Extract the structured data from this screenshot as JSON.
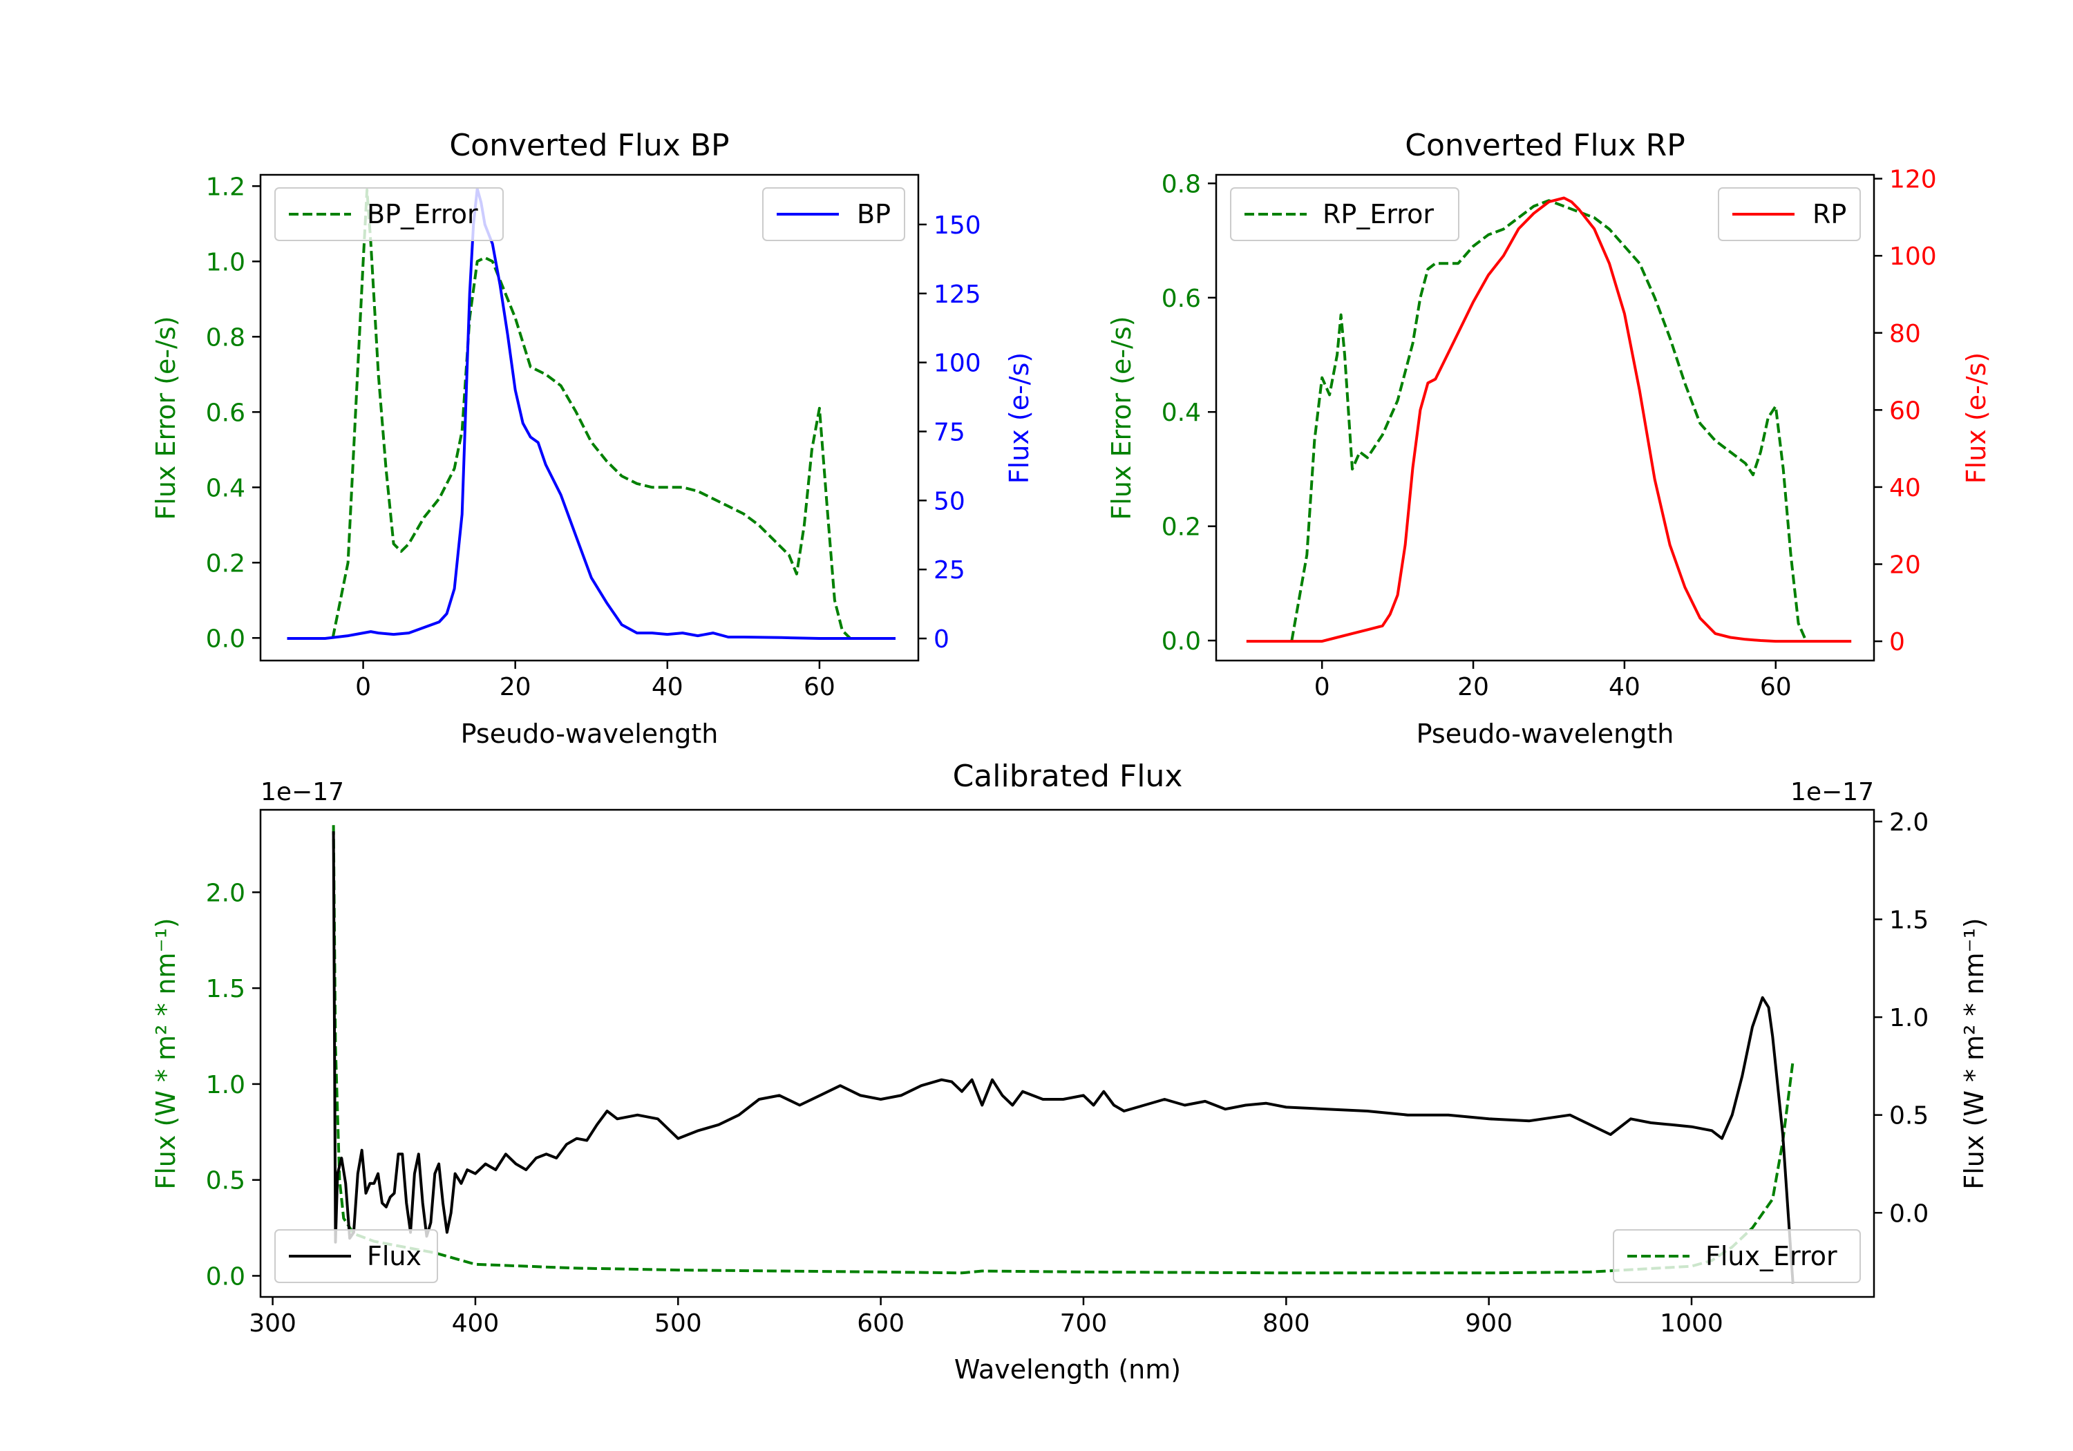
{
  "colors": {
    "green": "#008000",
    "blue": "#0000ff",
    "red": "#ff0000",
    "black": "#000000"
  },
  "chart_data": [
    {
      "id": "bp",
      "type": "line",
      "title": "Converted Flux BP",
      "xlabel": "Pseudo-wavelength",
      "ylabel_left": "Flux Error (e-/s)",
      "ylabel_right": "Flux (e-/s)",
      "xlim": [
        -13.5,
        73
      ],
      "ylim_left": [
        -0.06,
        1.23
      ],
      "ylim_right": [
        -8,
        168
      ],
      "xticks": [
        0,
        20,
        40,
        60
      ],
      "xtick_labels": [
        "0",
        "20",
        "40",
        "60"
      ],
      "yticks_left": [
        0.0,
        0.2,
        0.4,
        0.6,
        0.8,
        1.0,
        1.2
      ],
      "ytick_labels_left": [
        "0.0",
        "0.2",
        "0.4",
        "0.6",
        "0.8",
        "1.0",
        "1.2"
      ],
      "yticks_right": [
        0,
        25,
        50,
        75,
        100,
        125,
        150
      ],
      "ytick_labels_right": [
        "0",
        "25",
        "50",
        "75",
        "100",
        "125",
        "150"
      ],
      "series": [
        {
          "name": "BP_Error",
          "axis": "left",
          "style": "dashed",
          "color": "#008000",
          "x": [
            -4,
            -2,
            -1,
            0,
            0.5,
            1,
            2,
            3,
            4,
            5,
            6,
            8,
            10,
            12,
            13,
            14,
            15,
            16,
            17,
            18,
            20,
            22,
            24,
            26,
            28,
            30,
            32,
            34,
            36,
            38,
            40,
            42,
            44,
            46,
            48,
            50,
            52,
            54,
            56,
            57,
            58,
            59,
            60,
            61,
            62,
            63,
            64
          ],
          "y": [
            0.0,
            0.2,
            0.6,
            1.0,
            1.19,
            1.05,
            0.7,
            0.45,
            0.25,
            0.23,
            0.25,
            0.32,
            0.37,
            0.45,
            0.55,
            0.85,
            1.0,
            1.01,
            1.0,
            0.95,
            0.85,
            0.72,
            0.7,
            0.67,
            0.6,
            0.52,
            0.47,
            0.43,
            0.41,
            0.4,
            0.4,
            0.4,
            0.39,
            0.37,
            0.35,
            0.33,
            0.3,
            0.26,
            0.22,
            0.17,
            0.3,
            0.5,
            0.61,
            0.35,
            0.1,
            0.02,
            0.0
          ]
        },
        {
          "name": "BP",
          "axis": "right",
          "style": "solid",
          "color": "#0000ff",
          "x": [
            -10,
            -5,
            -2,
            0,
            1,
            2,
            4,
            6,
            8,
            10,
            11,
            12,
            13,
            14,
            14.5,
            15,
            15.5,
            16,
            17,
            18,
            19,
            20,
            21,
            22,
            23,
            24,
            26,
            28,
            30,
            32,
            34,
            36,
            38,
            40,
            42,
            44,
            46,
            48,
            50,
            55,
            60,
            65,
            70
          ],
          "y": [
            0,
            0,
            1,
            2,
            2.5,
            2,
            1.5,
            2,
            4,
            6,
            9,
            18,
            45,
            125,
            150,
            163,
            158,
            150,
            143,
            128,
            110,
            90,
            78,
            73,
            71,
            63,
            52,
            37,
            22,
            13,
            5,
            2,
            2,
            1.5,
            2,
            1,
            2,
            0.5,
            0.5,
            0.3,
            0,
            0,
            0
          ]
        }
      ],
      "legends": [
        {
          "label": "BP_Error",
          "style": "dashed",
          "color": "#008000",
          "placement": "upper-left"
        },
        {
          "label": "BP",
          "style": "solid",
          "color": "#0000ff",
          "placement": "upper-right"
        }
      ]
    },
    {
      "id": "rp",
      "type": "line",
      "title": "Converted Flux RP",
      "xlabel": "Pseudo-wavelength",
      "ylabel_left": "Flux Error (e-/s)",
      "ylabel_right": "Flux (e-/s)",
      "xlim": [
        -14,
        73
      ],
      "ylim_left": [
        -0.035,
        0.815
      ],
      "ylim_right": [
        -5,
        121
      ],
      "xticks": [
        0,
        20,
        40,
        60
      ],
      "xtick_labels": [
        "0",
        "20",
        "40",
        "60"
      ],
      "yticks_left": [
        0.0,
        0.2,
        0.4,
        0.6,
        0.8
      ],
      "ytick_labels_left": [
        "0.0",
        "0.2",
        "0.4",
        "0.6",
        "0.8"
      ],
      "yticks_right": [
        0,
        20,
        40,
        60,
        80,
        100,
        120
      ],
      "ytick_labels_right": [
        "0",
        "20",
        "40",
        "60",
        "80",
        "100",
        "120"
      ],
      "series": [
        {
          "name": "RP_Error",
          "axis": "left",
          "style": "dashed",
          "color": "#008000",
          "x": [
            -4,
            -2,
            -1,
            0,
            1,
            2,
            2.5,
            3,
            4,
            5,
            6,
            8,
            10,
            12,
            13,
            14,
            15,
            16,
            18,
            20,
            22,
            24,
            26,
            28,
            30,
            32,
            34,
            36,
            38,
            40,
            42,
            44,
            46,
            48,
            50,
            52,
            54,
            56,
            57,
            58,
            59,
            60,
            61,
            62,
            63,
            64
          ],
          "y": [
            0.0,
            0.15,
            0.35,
            0.46,
            0.43,
            0.5,
            0.57,
            0.5,
            0.3,
            0.33,
            0.32,
            0.36,
            0.42,
            0.52,
            0.6,
            0.65,
            0.66,
            0.66,
            0.66,
            0.69,
            0.71,
            0.72,
            0.74,
            0.76,
            0.77,
            0.76,
            0.75,
            0.74,
            0.72,
            0.69,
            0.66,
            0.6,
            0.53,
            0.45,
            0.38,
            0.35,
            0.33,
            0.31,
            0.29,
            0.33,
            0.39,
            0.41,
            0.3,
            0.15,
            0.03,
            0.0
          ]
        },
        {
          "name": "RP",
          "axis": "right",
          "style": "solid",
          "color": "#ff0000",
          "x": [
            -10,
            -5,
            0,
            2,
            4,
            6,
            8,
            9,
            10,
            11,
            12,
            13,
            14,
            15,
            16,
            18,
            20,
            22,
            24,
            26,
            28,
            30,
            32,
            33,
            34,
            36,
            38,
            40,
            42,
            44,
            46,
            48,
            50,
            52,
            54,
            56,
            58,
            60,
            65,
            70
          ],
          "y": [
            0,
            0,
            0,
            1,
            2,
            3,
            4,
            7,
            12,
            25,
            45,
            60,
            67,
            68,
            72,
            80,
            88,
            95,
            100,
            107,
            111,
            114,
            115,
            114,
            112,
            107,
            98,
            85,
            65,
            42,
            25,
            14,
            6,
            2,
            1,
            0.5,
            0.2,
            0,
            0,
            0
          ]
        }
      ],
      "legends": [
        {
          "label": "RP_Error",
          "style": "dashed",
          "color": "#008000",
          "placement": "upper-left"
        },
        {
          "label": "RP",
          "style": "solid",
          "color": "#ff0000",
          "placement": "upper-right"
        }
      ]
    },
    {
      "id": "cal",
      "type": "line",
      "title": "Calibrated Flux",
      "xlabel": "Wavelength (nm)",
      "ylabel_left": "Flux (W * m² * nm⁻¹)",
      "ylabel_right": "Flux (W * m² * nm⁻¹)",
      "offset_left": "1e−17",
      "offset_right": "1e−17",
      "xlim": [
        294,
        1090
      ],
      "ylim_left": [
        -0.11,
        2.43
      ],
      "ylim_right": [
        -0.43,
        2.06
      ],
      "xticks": [
        300,
        400,
        500,
        600,
        700,
        800,
        900,
        1000
      ],
      "xtick_labels": [
        "300",
        "400",
        "500",
        "600",
        "700",
        "800",
        "900",
        "1000"
      ],
      "yticks_left": [
        0.0,
        0.5,
        1.0,
        1.5,
        2.0
      ],
      "ytick_labels_left": [
        "0.0",
        "0.5",
        "1.0",
        "1.5",
        "2.0"
      ],
      "yticks_right": [
        0.0,
        0.5,
        1.0,
        1.5,
        2.0
      ],
      "ytick_labels_right": [
        "0.0",
        "0.5",
        "1.0",
        "1.5",
        "2.0"
      ],
      "series": [
        {
          "name": "Flux_Error",
          "axis": "left",
          "style": "dashed",
          "color": "#008000",
          "x": [
            330,
            331,
            333,
            335,
            340,
            350,
            360,
            380,
            400,
            450,
            500,
            550,
            600,
            640,
            650,
            700,
            800,
            900,
            950,
            1000,
            1010,
            1020,
            1030,
            1040,
            1045,
            1050
          ],
          "y": [
            2.35,
            1.2,
            0.5,
            0.3,
            0.22,
            0.18,
            0.16,
            0.12,
            0.06,
            0.04,
            0.03,
            0.025,
            0.02,
            0.015,
            0.025,
            0.02,
            0.015,
            0.015,
            0.02,
            0.05,
            0.08,
            0.15,
            0.25,
            0.4,
            0.7,
            1.12
          ]
        },
        {
          "name": "Flux",
          "axis": "right",
          "style": "solid",
          "color": "#000000",
          "x": [
            330,
            331,
            332,
            334,
            336,
            338,
            340,
            342,
            344,
            346,
            348,
            350,
            352,
            354,
            356,
            358,
            360,
            362,
            364,
            366,
            368,
            370,
            372,
            374,
            376,
            378,
            380,
            382,
            384,
            386,
            388,
            390,
            393,
            396,
            400,
            405,
            410,
            415,
            420,
            425,
            430,
            435,
            440,
            445,
            450,
            455,
            460,
            465,
            470,
            480,
            490,
            500,
            510,
            520,
            530,
            540,
            550,
            560,
            570,
            580,
            590,
            600,
            610,
            620,
            630,
            635,
            640,
            645,
            650,
            655,
            660,
            665,
            670,
            675,
            680,
            690,
            700,
            705,
            710,
            715,
            720,
            730,
            740,
            750,
            760,
            770,
            780,
            790,
            800,
            820,
            840,
            860,
            880,
            900,
            920,
            940,
            950,
            960,
            970,
            980,
            990,
            1000,
            1010,
            1015,
            1020,
            1025,
            1030,
            1035,
            1038,
            1040,
            1045,
            1050
          ],
          "y": [
            1.95,
            -0.15,
            0.2,
            0.28,
            0.15,
            -0.13,
            -0.1,
            0.2,
            0.32,
            0.1,
            0.15,
            0.15,
            0.2,
            0.05,
            0.03,
            0.08,
            0.1,
            0.3,
            0.3,
            0.05,
            -0.1,
            0.2,
            0.3,
            0.05,
            -0.12,
            -0.05,
            0.2,
            0.25,
            0.05,
            -0.1,
            0.0,
            0.2,
            0.15,
            0.22,
            0.2,
            0.25,
            0.22,
            0.3,
            0.25,
            0.22,
            0.28,
            0.3,
            0.28,
            0.35,
            0.38,
            0.37,
            0.45,
            0.52,
            0.48,
            0.5,
            0.48,
            0.38,
            0.42,
            0.45,
            0.5,
            0.58,
            0.6,
            0.55,
            0.6,
            0.65,
            0.6,
            0.58,
            0.6,
            0.65,
            0.68,
            0.67,
            0.62,
            0.68,
            0.55,
            0.68,
            0.6,
            0.55,
            0.62,
            0.6,
            0.58,
            0.58,
            0.6,
            0.55,
            0.62,
            0.55,
            0.52,
            0.55,
            0.58,
            0.55,
            0.57,
            0.53,
            0.55,
            0.56,
            0.54,
            0.53,
            0.52,
            0.5,
            0.5,
            0.48,
            0.47,
            0.5,
            0.45,
            0.4,
            0.48,
            0.46,
            0.45,
            0.44,
            0.42,
            0.38,
            0.5,
            0.7,
            0.95,
            1.1,
            1.05,
            0.9,
            0.4,
            -0.36
          ]
        }
      ],
      "legends": [
        {
          "label": "Flux",
          "style": "solid",
          "color": "#000000",
          "placement": "lower-left"
        },
        {
          "label": "Flux_Error",
          "style": "dashed",
          "color": "#008000",
          "placement": "lower-right"
        }
      ]
    }
  ]
}
